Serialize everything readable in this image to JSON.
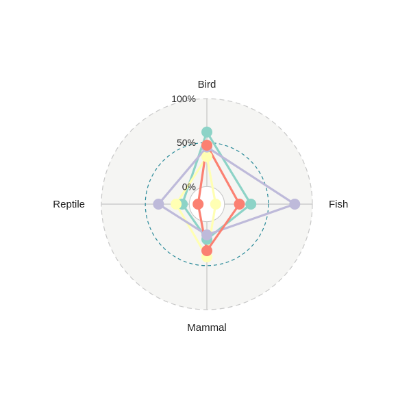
{
  "chart_data": {
    "type": "radar",
    "axes": [
      "Bird",
      "Fish",
      "Mammal",
      "Reptile"
    ],
    "rlim": [
      -20,
      100
    ],
    "ticks": [
      {
        "value": 0,
        "label": "0%"
      },
      {
        "value": 50,
        "label": "50%"
      },
      {
        "value": 100,
        "label": "100%"
      }
    ],
    "series": [
      {
        "values": [
          62,
          30,
          20,
          8
        ],
        "color": "#8dd3c7"
      },
      {
        "values": [
          34,
          -10,
          40,
          15
        ],
        "color": "#ffffb3"
      },
      {
        "values": [
          45,
          80,
          15,
          35
        ],
        "color": "#bebada"
      },
      {
        "values": [
          47,
          17,
          33,
          -10
        ],
        "color": "#fb8072"
      }
    ],
    "background": "#f5f5f3",
    "reference_circle_color": "#2a8a99",
    "outer_circle_color": "#c8c8c8",
    "grid": true
  }
}
